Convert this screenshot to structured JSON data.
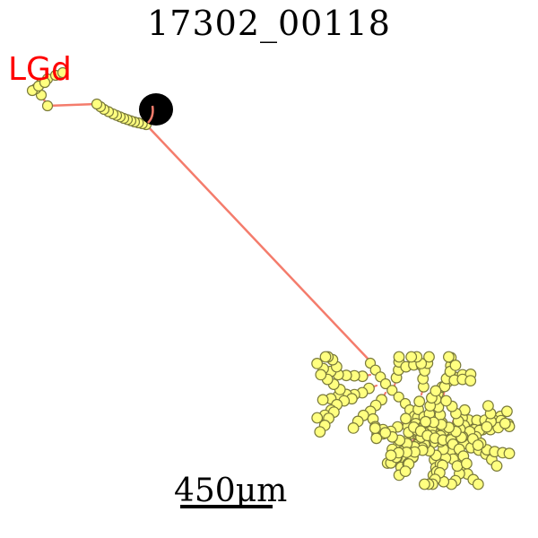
{
  "title": "17302_00118",
  "region_label": "LGd",
  "scale_bar": {
    "label": "450μm"
  },
  "colors": {
    "trace": "#f47c6c",
    "node_fill": "#ffff80",
    "node_edge": "#7a7a3a",
    "soma": "#000000",
    "region": "#ff0000"
  }
}
